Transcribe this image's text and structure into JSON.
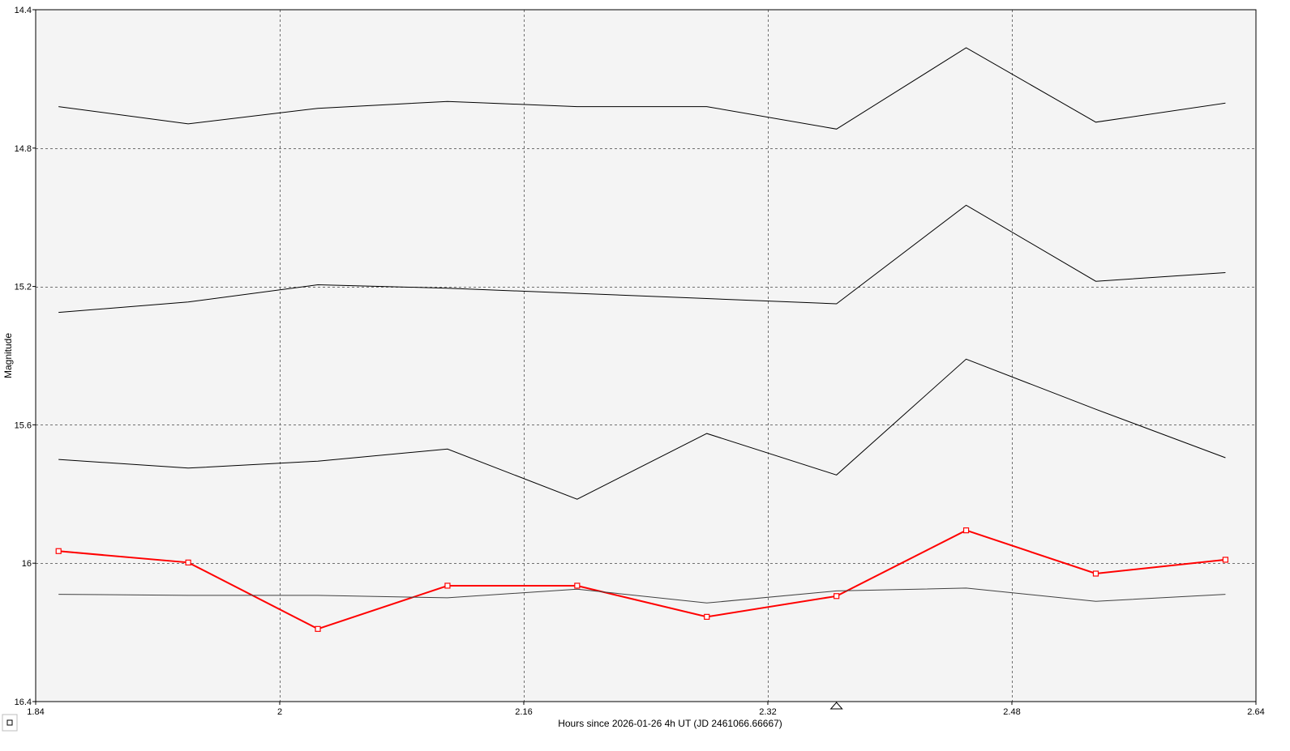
{
  "chart_data": {
    "type": "line",
    "xlabel": "Hours since 2026-01-26 4h UT (JD 2461066.66667)",
    "ylabel": "Magnitude",
    "xlim": [
      1.84,
      2.64
    ],
    "ylim": [
      16.4,
      14.4
    ],
    "y_inverted": true,
    "x_ticks": [
      1.84,
      2.0,
      2.16,
      2.32,
      2.48,
      2.64
    ],
    "x_tick_labels": [
      "1.84",
      "2",
      "2.16",
      "2.32",
      "2.48",
      "2.64"
    ],
    "y_ticks": [
      14.4,
      14.8,
      15.2,
      15.6,
      16.0,
      16.4
    ],
    "y_tick_labels": [
      "14.4",
      "14.8",
      "15.2",
      "15.6",
      "16",
      "16.4"
    ],
    "grid": true,
    "x": [
      1.855,
      1.94,
      2.025,
      2.11,
      2.195,
      2.28,
      2.365,
      2.45,
      2.535,
      2.62
    ],
    "series": [
      {
        "color": "#000000",
        "markers": false,
        "values": [
          14.68,
          14.73,
          14.685,
          14.665,
          14.68,
          14.68,
          14.745,
          14.51,
          14.725,
          14.67
        ]
      },
      {
        "color": "#000000",
        "markers": false,
        "values": [
          15.275,
          15.245,
          15.195,
          15.205,
          15.22,
          15.235,
          15.25,
          14.965,
          15.185,
          15.16
        ]
      },
      {
        "color": "#000000",
        "markers": false,
        "values": [
          15.7,
          15.725,
          15.705,
          15.67,
          15.815,
          15.625,
          15.745,
          15.41,
          15.555,
          15.695
        ]
      },
      {
        "color": "#ff0000",
        "markers": true,
        "values": [
          15.965,
          15.998,
          16.19,
          16.065,
          16.065,
          16.155,
          16.095,
          15.905,
          16.03,
          15.99
        ]
      },
      {
        "color": "#404040",
        "markers": false,
        "values": [
          16.09,
          16.093,
          16.093,
          16.1,
          16.075,
          16.115,
          16.08,
          16.072,
          16.11,
          16.09
        ]
      }
    ],
    "annotation_marker_x": 2.365
  },
  "icons": {
    "legend_toggle": "square-icon",
    "cursor_marker": "triangle-marker-icon"
  }
}
